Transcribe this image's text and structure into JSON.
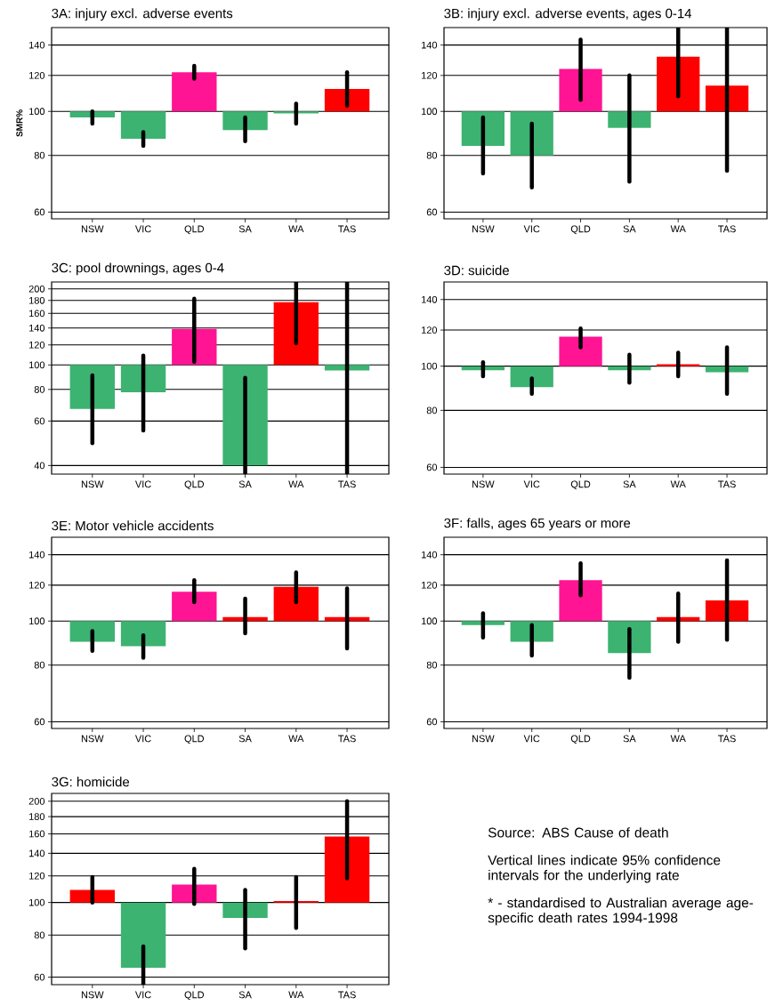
{
  "chart_data": [
    {
      "type": "bar",
      "title": "3A: injury excl. adverse events",
      "ylabel": "SMR%",
      "categories": [
        "NSW",
        "VIC",
        "QLD",
        "SA",
        "WA",
        "TAS"
      ],
      "base": [
        100,
        100,
        100,
        100,
        100,
        100
      ],
      "values": [
        -3,
        -13,
        22,
        -9,
        -1,
        12
      ],
      "colors": [
        "#3cb371",
        "#3cb371",
        "#ff1493",
        "#3cb371",
        "#3cb371",
        "#ff0000"
      ],
      "errors": [
        [
          94,
          100
        ],
        [
          84,
          90
        ],
        [
          118,
          126
        ],
        [
          86,
          97
        ],
        [
          94,
          104
        ],
        [
          103,
          122
        ]
      ],
      "ylim": [
        58,
        153
      ],
      "yticks": [
        60,
        80,
        100,
        120,
        140
      ],
      "log": true,
      "grid": "y"
    },
    {
      "type": "bar",
      "title": "3B: injury excl. adverse events, ages 0-14",
      "categories": [
        "NSW",
        "VIC",
        "QLD",
        "SA",
        "WA",
        "TAS"
      ],
      "base": [
        100,
        100,
        100,
        100,
        100,
        100
      ],
      "values": [
        -16,
        -20,
        24,
        -8,
        32,
        14
      ],
      "colors": [
        "#3cb371",
        "#3cb371",
        "#ff1493",
        "#3cb371",
        "#ff0000",
        "#ff0000"
      ],
      "errors": [
        [
          73,
          97
        ],
        [
          68,
          94
        ],
        [
          106,
          144
        ],
        [
          70,
          120
        ],
        [
          108,
          153
        ],
        [
          74,
          153
        ]
      ],
      "ylim": [
        58,
        153
      ],
      "yticks": [
        60,
        80,
        100,
        120,
        140
      ],
      "log": true,
      "grid": "y"
    },
    {
      "type": "bar",
      "title": "3C: pool drownings, ages 0-4",
      "categories": [
        "NSW",
        "VIC",
        "QLD",
        "SA",
        "WA",
        "TAS"
      ],
      "base": [
        100,
        100,
        100,
        100,
        100,
        100
      ],
      "values": [
        -33,
        -22,
        39,
        -60,
        77,
        -5
      ],
      "colors": [
        "#3cb371",
        "#3cb371",
        "#ff1493",
        "#3cb371",
        "#ff0000",
        "#3cb371"
      ],
      "errors": [
        [
          49,
          91
        ],
        [
          55,
          109
        ],
        [
          103,
          183
        ],
        [
          37,
          89
        ],
        [
          122,
          213
        ],
        [
          37,
          213
        ]
      ],
      "ylim": [
        37,
        213
      ],
      "yticks": [
        40,
        60,
        80,
        100,
        120,
        140,
        160,
        180,
        200
      ],
      "log": true,
      "grid": "y"
    },
    {
      "type": "bar",
      "title": "3D: suicide",
      "categories": [
        "NSW",
        "VIC",
        "QLD",
        "SA",
        "WA",
        "TAS"
      ],
      "base": [
        100,
        100,
        100,
        100,
        100,
        100
      ],
      "values": [
        -2,
        -10,
        16,
        -2,
        1,
        -3
      ],
      "colors": [
        "#3cb371",
        "#3cb371",
        "#ff1493",
        "#3cb371",
        "#ff0000",
        "#3cb371"
      ],
      "errors": [
        [
          95,
          102
        ],
        [
          87,
          94
        ],
        [
          110,
          121
        ],
        [
          92,
          106
        ],
        [
          95,
          107
        ],
        [
          87,
          110
        ]
      ],
      "ylim": [
        58,
        153
      ],
      "yticks": [
        60,
        80,
        100,
        120,
        140
      ],
      "log": true,
      "grid": "y"
    },
    {
      "type": "bar",
      "title": "3E: Motor vehicle accidents",
      "categories": [
        "NSW",
        "VIC",
        "QLD",
        "SA",
        "WA",
        "TAS"
      ],
      "base": [
        100,
        100,
        100,
        100,
        100,
        100
      ],
      "values": [
        -10,
        -12,
        16,
        2,
        19,
        2
      ],
      "colors": [
        "#3cb371",
        "#3cb371",
        "#ff1493",
        "#ff0000",
        "#ff0000",
        "#ff0000"
      ],
      "errors": [
        [
          86,
          95
        ],
        [
          83,
          93
        ],
        [
          110,
          123
        ],
        [
          94,
          112
        ],
        [
          110,
          128
        ],
        [
          87,
          118
        ]
      ],
      "ylim": [
        58,
        153
      ],
      "yticks": [
        60,
        80,
        100,
        120,
        140
      ],
      "log": true,
      "grid": "y"
    },
    {
      "type": "bar",
      "title": "3F: falls, ages 65 years or more",
      "categories": [
        "NSW",
        "VIC",
        "QLD",
        "SA",
        "WA",
        "TAS"
      ],
      "base": [
        100,
        100,
        100,
        100,
        100,
        100
      ],
      "values": [
        -2,
        -10,
        23,
        -15,
        2,
        11
      ],
      "colors": [
        "#3cb371",
        "#3cb371",
        "#ff1493",
        "#3cb371",
        "#ff0000",
        "#ff0000"
      ],
      "errors": [
        [
          92,
          104
        ],
        [
          84,
          98
        ],
        [
          114,
          134
        ],
        [
          75,
          96
        ],
        [
          90,
          115
        ],
        [
          91,
          136
        ]
      ],
      "ylim": [
        58,
        153
      ],
      "yticks": [
        60,
        80,
        100,
        120,
        140
      ],
      "log": true,
      "grid": "y"
    },
    {
      "type": "bar",
      "title": "3G: homicide",
      "categories": [
        "NSW",
        "VIC",
        "QLD",
        "SA",
        "WA",
        "TAS"
      ],
      "base": [
        100,
        100,
        100,
        100,
        100,
        100
      ],
      "values": [
        9,
        -36,
        13,
        -10,
        1,
        57
      ],
      "colors": [
        "#ff0000",
        "#3cb371",
        "#ff1493",
        "#3cb371",
        "#ff0000",
        "#ff0000"
      ],
      "errors": [
        [
          100,
          119
        ],
        [
          57,
          74
        ],
        [
          99,
          126
        ],
        [
          73,
          109
        ],
        [
          84,
          119
        ],
        [
          118,
          200
        ]
      ],
      "ylim": [
        57,
        211
      ],
      "yticks": [
        60,
        80,
        100,
        120,
        140,
        160,
        180,
        200
      ],
      "log": true,
      "grid": "y"
    },
    {
      "type": "other",
      "annotations": [
        "Source: ABS Cause of death",
        "Vertical lines indicate 95% confidence intervals for the underlying rate",
        "* - standardised to Australian average age-specific death rates 1994-1998"
      ]
    }
  ]
}
